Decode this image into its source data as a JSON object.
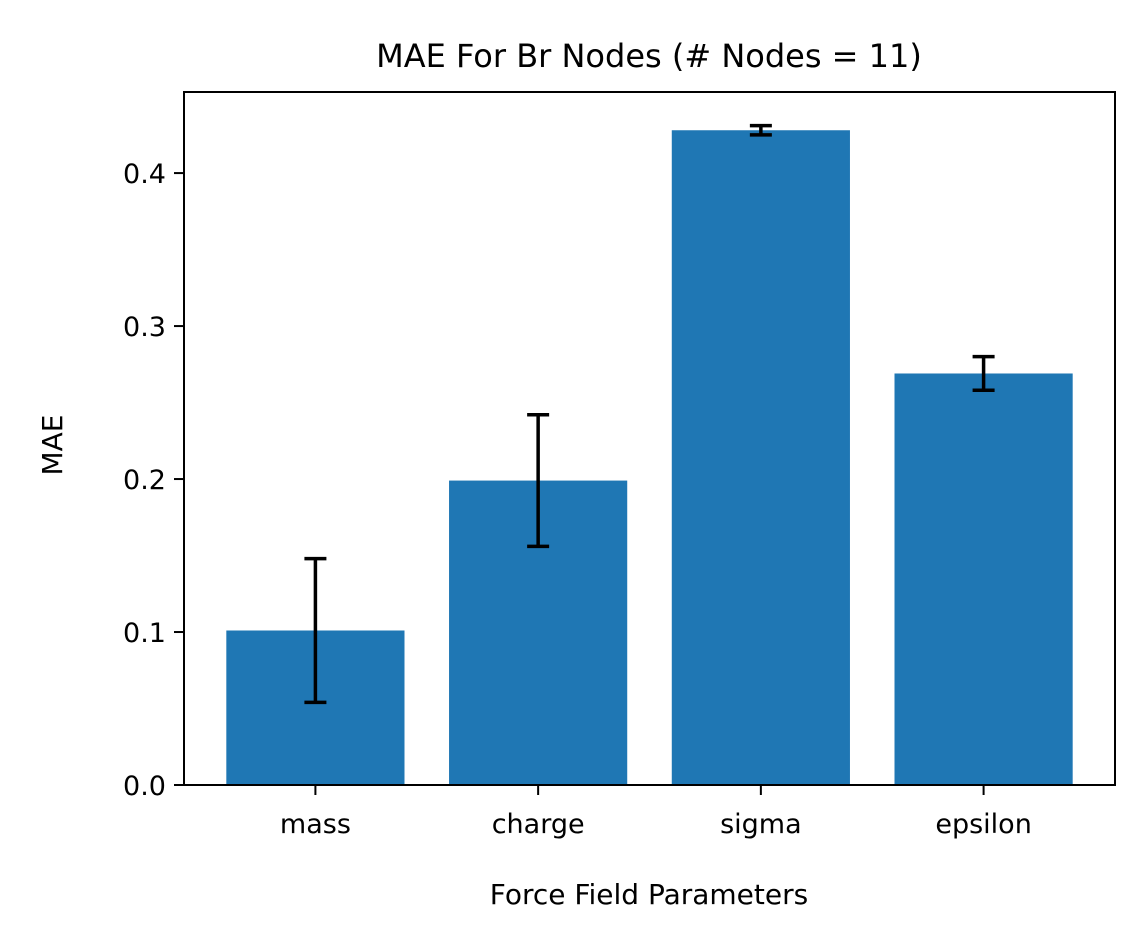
{
  "chart_data": {
    "type": "bar",
    "title": "MAE For Br Nodes (# Nodes = 11)",
    "xlabel": "Force Field Parameters",
    "ylabel": "MAE",
    "categories": [
      "mass",
      "charge",
      "sigma",
      "epsilon"
    ],
    "values": [
      0.101,
      0.199,
      0.428,
      0.269
    ],
    "errors": [
      0.047,
      0.043,
      0.003,
      0.011
    ],
    "ylim": [
      0.0,
      0.453
    ],
    "yticks": [
      0.0,
      0.1,
      0.2,
      0.3,
      0.4
    ],
    "ytick_labels": [
      "0.0",
      "0.1",
      "0.2",
      "0.3",
      "0.4"
    ],
    "grid": false,
    "bar_color": "#1f77b4",
    "error_color": "#000000"
  }
}
